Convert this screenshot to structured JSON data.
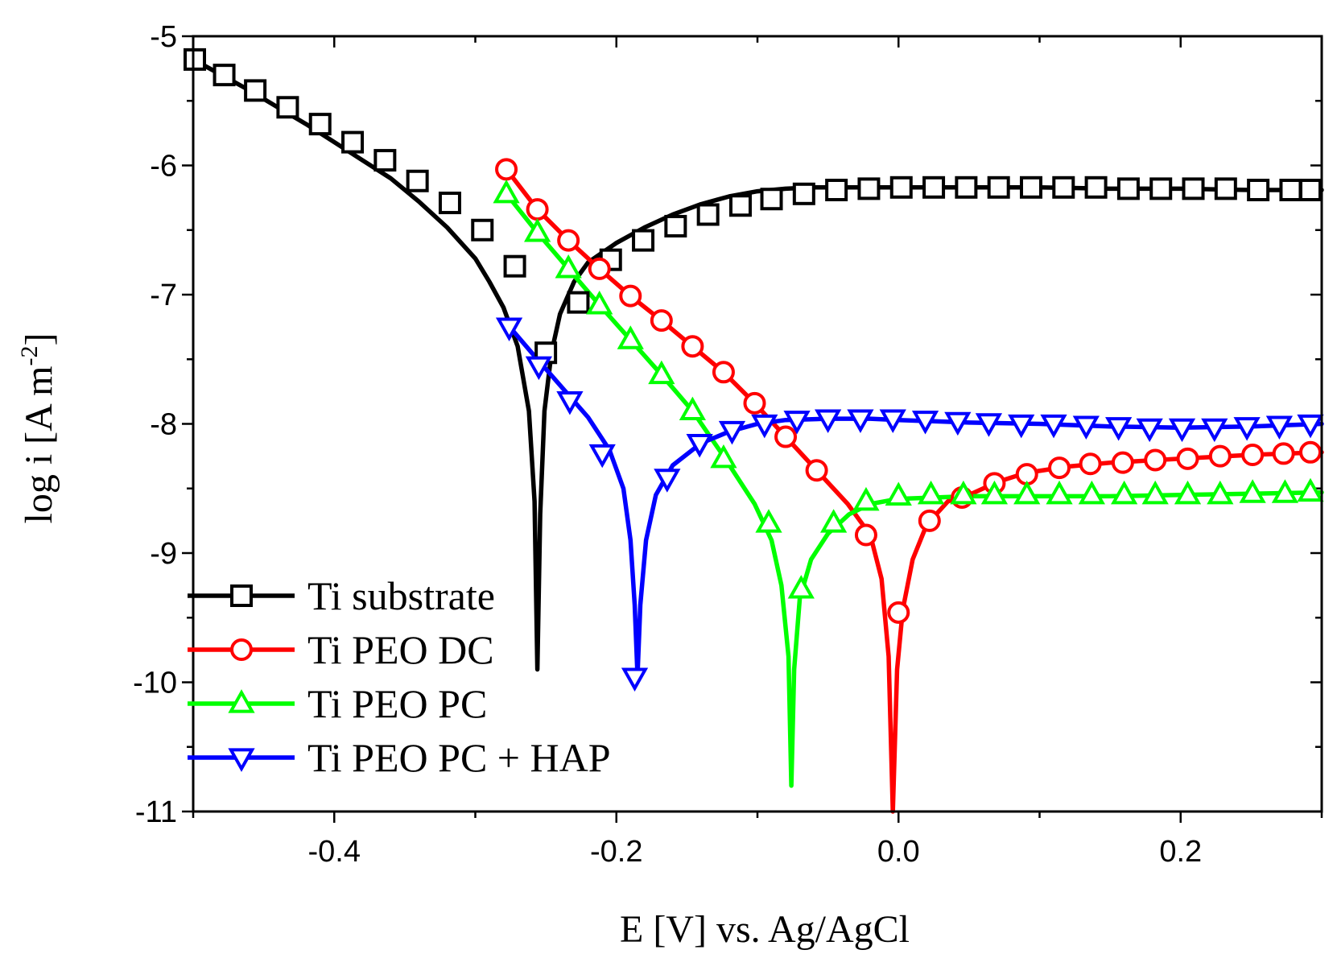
{
  "chart_data": {
    "type": "line",
    "title": "",
    "xlabel": "E [V] vs. Ag/AgCl",
    "ylabel_main": "log i [A m",
    "ylabel_sup": "-2",
    "ylabel_close": "]",
    "xlim": [
      -0.5,
      0.3
    ],
    "ylim": [
      -11,
      -5
    ],
    "xticks": [
      {
        "value": -0.4,
        "label": "-0.4"
      },
      {
        "value": -0.2,
        "label": "-0.2"
      },
      {
        "value": 0.0,
        "label": "0.0"
      },
      {
        "value": 0.2,
        "label": "0.2"
      }
    ],
    "yticks": [
      {
        "value": -5,
        "label": "-5"
      },
      {
        "value": -6,
        "label": "-6"
      },
      {
        "value": -7,
        "label": "-7"
      },
      {
        "value": -8,
        "label": "-8"
      },
      {
        "value": -9,
        "label": "-9"
      },
      {
        "value": -10,
        "label": "-10"
      },
      {
        "value": -11,
        "label": "-11"
      }
    ],
    "legend_position": "bottom-left",
    "series": [
      {
        "name": "Ti substrate",
        "color": "#000000",
        "marker": "square",
        "points": [
          [
            -0.5,
            -5.18
          ],
          [
            -0.48,
            -5.3
          ],
          [
            -0.46,
            -5.42
          ],
          [
            -0.44,
            -5.55
          ],
          [
            -0.42,
            -5.68
          ],
          [
            -0.4,
            -5.82
          ],
          [
            -0.38,
            -5.96
          ],
          [
            -0.36,
            -6.1
          ],
          [
            -0.34,
            -6.28
          ],
          [
            -0.32,
            -6.48
          ],
          [
            -0.3,
            -6.72
          ],
          [
            -0.29,
            -6.9
          ],
          [
            -0.28,
            -7.1
          ],
          [
            -0.27,
            -7.4
          ],
          [
            -0.262,
            -7.9
          ],
          [
            -0.258,
            -8.6
          ],
          [
            -0.256,
            -9.9
          ],
          [
            -0.254,
            -8.7
          ],
          [
            -0.251,
            -7.9
          ],
          [
            -0.246,
            -7.45
          ],
          [
            -0.24,
            -7.15
          ],
          [
            -0.23,
            -6.9
          ],
          [
            -0.22,
            -6.75
          ],
          [
            -0.2,
            -6.6
          ],
          [
            -0.18,
            -6.48
          ],
          [
            -0.16,
            -6.38
          ],
          [
            -0.14,
            -6.3
          ],
          [
            -0.12,
            -6.24
          ],
          [
            -0.1,
            -6.2
          ],
          [
            -0.08,
            -6.18
          ],
          [
            -0.06,
            -6.17
          ],
          [
            -0.04,
            -6.17
          ],
          [
            0.0,
            -6.17
          ],
          [
            0.05,
            -6.17
          ],
          [
            0.1,
            -6.17
          ],
          [
            0.15,
            -6.18
          ],
          [
            0.2,
            -6.18
          ],
          [
            0.25,
            -6.19
          ],
          [
            0.3,
            -6.19
          ]
        ],
        "marker_points": [
          [
            -0.5,
            -5.18
          ],
          [
            -0.478,
            -5.3
          ],
          [
            -0.456,
            -5.42
          ],
          [
            -0.433,
            -5.55
          ],
          [
            -0.41,
            -5.68
          ],
          [
            -0.387,
            -5.82
          ],
          [
            -0.364,
            -5.96
          ],
          [
            -0.341,
            -6.12
          ],
          [
            -0.318,
            -6.29
          ],
          [
            -0.295,
            -6.5
          ],
          [
            -0.272,
            -6.78
          ],
          [
            -0.25,
            -7.45
          ],
          [
            -0.227,
            -7.06
          ],
          [
            -0.204,
            -6.73
          ],
          [
            -0.181,
            -6.58
          ],
          [
            -0.158,
            -6.47
          ],
          [
            -0.135,
            -6.38
          ],
          [
            -0.112,
            -6.31
          ],
          [
            -0.09,
            -6.26
          ],
          [
            -0.067,
            -6.22
          ],
          [
            -0.044,
            -6.19
          ],
          [
            -0.021,
            -6.18
          ],
          [
            0.002,
            -6.17
          ],
          [
            0.025,
            -6.17
          ],
          [
            0.048,
            -6.17
          ],
          [
            0.071,
            -6.17
          ],
          [
            0.094,
            -6.17
          ],
          [
            0.117,
            -6.17
          ],
          [
            0.14,
            -6.17
          ],
          [
            0.163,
            -6.18
          ],
          [
            0.186,
            -6.18
          ],
          [
            0.209,
            -6.18
          ],
          [
            0.232,
            -6.18
          ],
          [
            0.255,
            -6.19
          ],
          [
            0.278,
            -6.19
          ],
          [
            0.3,
            -6.19
          ]
        ]
      },
      {
        "name": "Ti PEO DC",
        "color": "#ff0000",
        "marker": "circle",
        "points": [
          [
            -0.278,
            -6.03
          ],
          [
            -0.256,
            -6.34
          ],
          [
            -0.234,
            -6.58
          ],
          [
            -0.212,
            -6.8
          ],
          [
            -0.19,
            -7.01
          ],
          [
            -0.168,
            -7.2
          ],
          [
            -0.146,
            -7.4
          ],
          [
            -0.124,
            -7.6
          ],
          [
            -0.102,
            -7.84
          ],
          [
            -0.08,
            -8.1
          ],
          [
            -0.058,
            -8.36
          ],
          [
            -0.036,
            -8.62
          ],
          [
            -0.02,
            -8.86
          ],
          [
            -0.012,
            -9.2
          ],
          [
            -0.007,
            -9.8
          ],
          [
            -0.004,
            -11.0
          ],
          [
            -0.001,
            -9.9
          ],
          [
            0.003,
            -9.44
          ],
          [
            0.01,
            -9.05
          ],
          [
            0.02,
            -8.78
          ],
          [
            0.035,
            -8.6
          ],
          [
            0.05,
            -8.55
          ],
          [
            0.07,
            -8.45
          ],
          [
            0.09,
            -8.38
          ],
          [
            0.12,
            -8.33
          ],
          [
            0.15,
            -8.3
          ],
          [
            0.2,
            -8.27
          ],
          [
            0.25,
            -8.24
          ],
          [
            0.3,
            -8.22
          ]
        ],
        "marker_points": [
          [
            -0.278,
            -6.03
          ],
          [
            -0.256,
            -6.34
          ],
          [
            -0.234,
            -6.58
          ],
          [
            -0.212,
            -6.8
          ],
          [
            -0.19,
            -7.01
          ],
          [
            -0.168,
            -7.2
          ],
          [
            -0.146,
            -7.4
          ],
          [
            -0.124,
            -7.6
          ],
          [
            -0.102,
            -7.84
          ],
          [
            -0.08,
            -8.1
          ],
          [
            -0.058,
            -8.36
          ],
          [
            -0.023,
            -8.86
          ],
          [
            0.0,
            -9.46
          ],
          [
            0.022,
            -8.75
          ],
          [
            0.045,
            -8.57
          ],
          [
            0.068,
            -8.46
          ],
          [
            0.091,
            -8.39
          ],
          [
            0.114,
            -8.34
          ],
          [
            0.136,
            -8.31
          ],
          [
            0.159,
            -8.3
          ],
          [
            0.182,
            -8.28
          ],
          [
            0.205,
            -8.27
          ],
          [
            0.228,
            -8.25
          ],
          [
            0.251,
            -8.24
          ],
          [
            0.273,
            -8.23
          ],
          [
            0.296,
            -8.22
          ]
        ]
      },
      {
        "name": "Ti PEO PC",
        "color": "#00ff00",
        "marker": "triangle-up",
        "points": [
          [
            -0.278,
            -6.22
          ],
          [
            -0.256,
            -6.52
          ],
          [
            -0.234,
            -6.8
          ],
          [
            -0.212,
            -7.08
          ],
          [
            -0.19,
            -7.35
          ],
          [
            -0.168,
            -7.62
          ],
          [
            -0.146,
            -7.9
          ],
          [
            -0.124,
            -8.25
          ],
          [
            -0.102,
            -8.62
          ],
          [
            -0.09,
            -8.9
          ],
          [
            -0.083,
            -9.25
          ],
          [
            -0.078,
            -9.8
          ],
          [
            -0.076,
            -10.8
          ],
          [
            -0.074,
            -9.9
          ],
          [
            -0.07,
            -9.35
          ],
          [
            -0.062,
            -9.05
          ],
          [
            -0.05,
            -8.85
          ],
          [
            -0.035,
            -8.7
          ],
          [
            -0.02,
            -8.62
          ],
          [
            0.0,
            -8.58
          ],
          [
            0.05,
            -8.56
          ],
          [
            0.1,
            -8.56
          ],
          [
            0.15,
            -8.56
          ],
          [
            0.2,
            -8.55
          ],
          [
            0.25,
            -8.54
          ],
          [
            0.3,
            -8.53
          ]
        ],
        "marker_points": [
          [
            -0.278,
            -6.22
          ],
          [
            -0.256,
            -6.52
          ],
          [
            -0.234,
            -6.8
          ],
          [
            -0.212,
            -7.08
          ],
          [
            -0.19,
            -7.35
          ],
          [
            -0.168,
            -7.62
          ],
          [
            -0.146,
            -7.9
          ],
          [
            -0.124,
            -8.27
          ],
          [
            -0.092,
            -8.77
          ],
          [
            -0.069,
            -9.28
          ],
          [
            -0.046,
            -8.77
          ],
          [
            -0.023,
            -8.6
          ],
          [
            0.0,
            -8.56
          ],
          [
            0.023,
            -8.55
          ],
          [
            0.046,
            -8.55
          ],
          [
            0.068,
            -8.55
          ],
          [
            0.091,
            -8.55
          ],
          [
            0.114,
            -8.55
          ],
          [
            0.137,
            -8.55
          ],
          [
            0.16,
            -8.55
          ],
          [
            0.182,
            -8.55
          ],
          [
            0.205,
            -8.55
          ],
          [
            0.228,
            -8.55
          ],
          [
            0.251,
            -8.54
          ],
          [
            0.274,
            -8.54
          ],
          [
            0.297,
            -8.53
          ]
        ]
      },
      {
        "name": "Ti PEO PC + HAP",
        "color": "#0000ff",
        "marker": "triangle-down",
        "points": [
          [
            -0.278,
            -7.22
          ],
          [
            -0.26,
            -7.45
          ],
          [
            -0.24,
            -7.7
          ],
          [
            -0.22,
            -7.95
          ],
          [
            -0.205,
            -8.2
          ],
          [
            -0.195,
            -8.5
          ],
          [
            -0.19,
            -8.9
          ],
          [
            -0.187,
            -9.4
          ],
          [
            -0.185,
            -9.95
          ],
          [
            -0.183,
            -9.4
          ],
          [
            -0.179,
            -8.9
          ],
          [
            -0.172,
            -8.55
          ],
          [
            -0.16,
            -8.32
          ],
          [
            -0.14,
            -8.15
          ],
          [
            -0.12,
            -8.06
          ],
          [
            -0.1,
            -8.0
          ],
          [
            -0.08,
            -7.97
          ],
          [
            -0.05,
            -7.96
          ],
          [
            -0.02,
            -7.96
          ],
          [
            0.0,
            -7.97
          ],
          [
            0.05,
            -7.99
          ],
          [
            0.1,
            -8.0
          ],
          [
            0.15,
            -8.02
          ],
          [
            0.2,
            -8.03
          ],
          [
            0.25,
            -8.02
          ],
          [
            0.3,
            -8.0
          ]
        ],
        "marker_points": [
          [
            -0.276,
            -7.25
          ],
          [
            -0.255,
            -7.55
          ],
          [
            -0.233,
            -7.82
          ],
          [
            -0.21,
            -8.23
          ],
          [
            -0.187,
            -9.96
          ],
          [
            -0.164,
            -8.42
          ],
          [
            -0.141,
            -8.15
          ],
          [
            -0.118,
            -8.05
          ],
          [
            -0.095,
            -8.0
          ],
          [
            -0.072,
            -7.97
          ],
          [
            -0.05,
            -7.96
          ],
          [
            -0.027,
            -7.96
          ],
          [
            -0.004,
            -7.96
          ],
          [
            0.019,
            -7.97
          ],
          [
            0.042,
            -7.98
          ],
          [
            0.064,
            -7.99
          ],
          [
            0.087,
            -8.0
          ],
          [
            0.11,
            -8.0
          ],
          [
            0.133,
            -8.01
          ],
          [
            0.156,
            -8.02
          ],
          [
            0.178,
            -8.03
          ],
          [
            0.201,
            -8.03
          ],
          [
            0.224,
            -8.03
          ],
          [
            0.247,
            -8.02
          ],
          [
            0.27,
            -8.01
          ],
          [
            0.293,
            -8.0
          ]
        ]
      }
    ]
  }
}
